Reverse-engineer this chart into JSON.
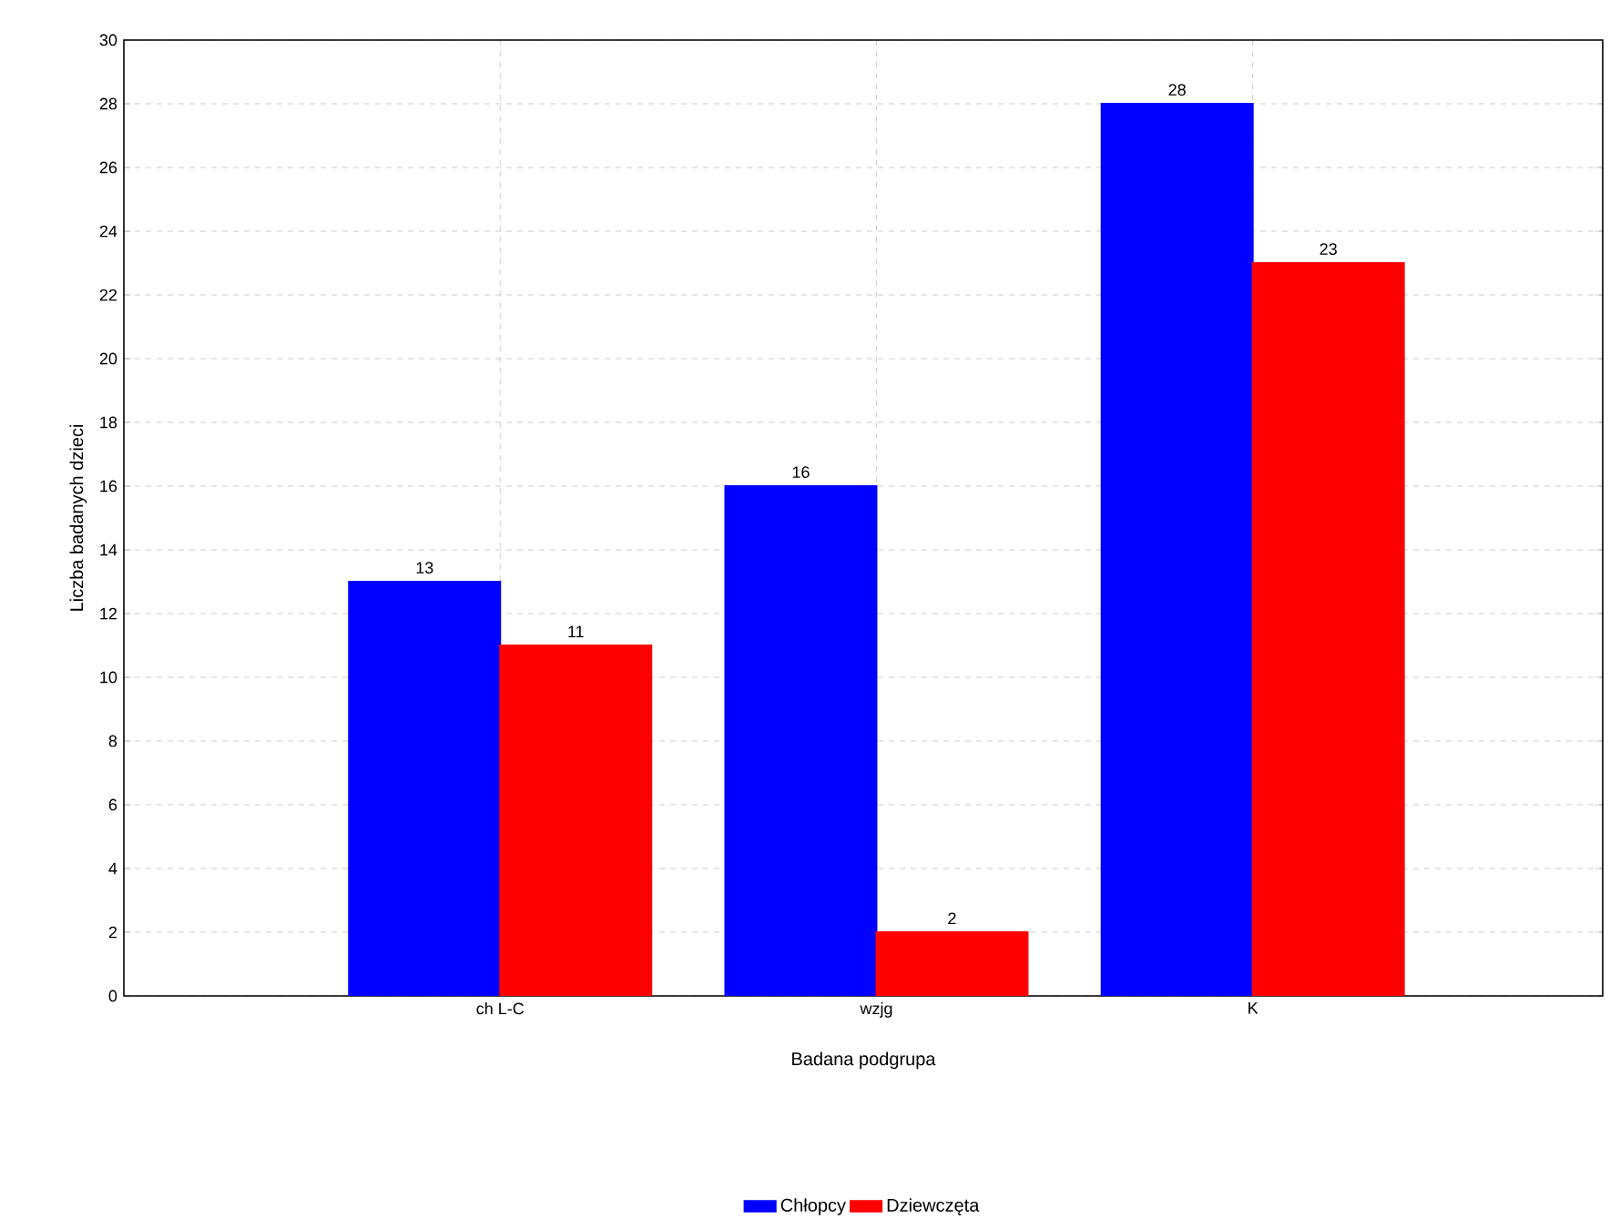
{
  "chart_data": {
    "type": "bar",
    "xlabel": "Badana podgrupa",
    "ylabel": "Liczba badanych dzieci",
    "categories": [
      "ch L-C",
      "wzjg",
      "K"
    ],
    "series": [
      {
        "name": "Chłopcy",
        "color": "#0000ff",
        "values": [
          13,
          16,
          28
        ]
      },
      {
        "name": "Dziewczęta",
        "color": "#ff0000",
        "values": [
          11,
          2,
          23
        ]
      }
    ],
    "ylim": [
      0,
      30
    ],
    "yticks": [
      0,
      2,
      4,
      6,
      8,
      10,
      12,
      14,
      16,
      18,
      20,
      22,
      24,
      26,
      28,
      30
    ],
    "grid": true,
    "legend": "bottom",
    "data_labels": true
  }
}
